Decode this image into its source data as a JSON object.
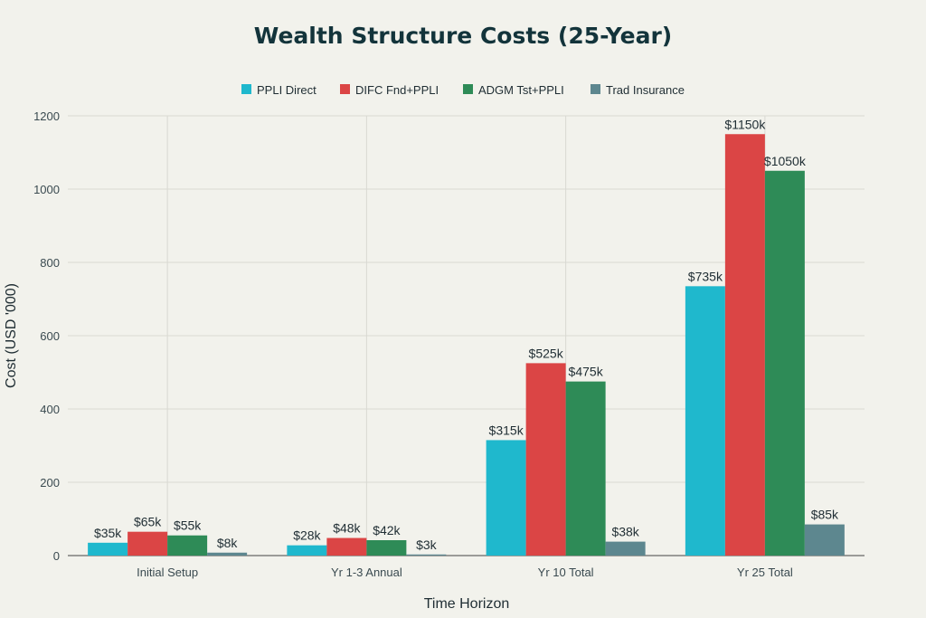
{
  "chart_data": {
    "type": "bar",
    "title": "Wealth Structure Costs (25-Year)",
    "xlabel": "Time Horizon",
    "ylabel": "Cost (USD '000)",
    "categories": [
      "Initial Setup",
      "Yr 1-3 Annual",
      "Yr 10 Total",
      "Yr 25 Total"
    ],
    "ylim": [
      0,
      1200
    ],
    "yticks": [
      0,
      200,
      400,
      600,
      800,
      1000,
      1200
    ],
    "grid": true,
    "legend_position": "top",
    "series": [
      {
        "name": "PPLI Direct",
        "color": "#1fb8cd",
        "values": [
          35,
          28,
          315,
          735
        ],
        "labels": [
          "$35k",
          "$28k",
          "$315k",
          "$735k"
        ]
      },
      {
        "name": "DIFC Fnd+PPLI",
        "color": "#db4545",
        "values": [
          65,
          48,
          525,
          1150
        ],
        "labels": [
          "$65k",
          "$48k",
          "$525k",
          "$1150k"
        ]
      },
      {
        "name": "ADGM Tst+PPLI",
        "color": "#2e8b57",
        "values": [
          55,
          42,
          475,
          1050
        ],
        "labels": [
          "$55k",
          "$42k",
          "$475k",
          "$1050k"
        ]
      },
      {
        "name": "Trad Insurance",
        "color": "#5d878f",
        "values": [
          8,
          3,
          38,
          85
        ],
        "labels": [
          "$8k",
          "$3k",
          "$38k",
          "$85k"
        ]
      }
    ]
  }
}
